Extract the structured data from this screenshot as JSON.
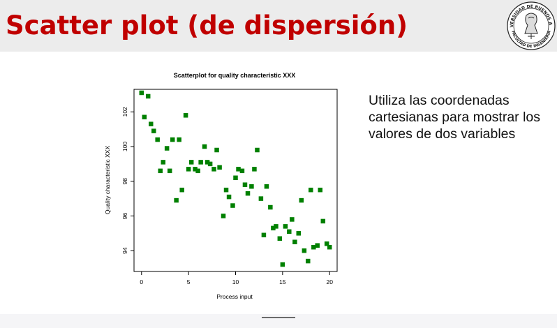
{
  "slide": {
    "title": "Scatter plot (de dispersión)",
    "text": "Utiliza las coordenadas cartesianas para mostrar los valores de dos variables",
    "logo": {
      "icon": "university-seal-icon",
      "ring_top": "UNIVERSIDAD DE BUENOS AIRES",
      "ring_bottom": "FACULTAD DE INGENIERIA"
    }
  },
  "colors": {
    "title": "#c00000",
    "header_bg": "#ececec",
    "marker": "#008000"
  },
  "chart_data": {
    "type": "scatter",
    "title": "Scatterplot for quality characteristic XXX",
    "xlabel": "Process input",
    "ylabel": "Quality characteristic XXX",
    "xlim": [
      -0.8,
      20.8
    ],
    "ylim": [
      92.8,
      103.3
    ],
    "xticks": [
      0,
      5,
      10,
      15,
      20
    ],
    "yticks": [
      94,
      96,
      98,
      100,
      102
    ],
    "marker": "square",
    "grid": false,
    "points": [
      [
        0.0,
        103.1
      ],
      [
        0.3,
        101.7
      ],
      [
        0.7,
        102.9
      ],
      [
        1.0,
        101.3
      ],
      [
        1.3,
        100.9
      ],
      [
        1.7,
        100.4
      ],
      [
        2.0,
        98.6
      ],
      [
        2.3,
        99.1
      ],
      [
        2.7,
        99.9
      ],
      [
        3.0,
        98.6
      ],
      [
        3.3,
        100.4
      ],
      [
        3.7,
        96.9
      ],
      [
        4.0,
        100.4
      ],
      [
        4.3,
        97.5
      ],
      [
        4.7,
        101.8
      ],
      [
        5.0,
        98.7
      ],
      [
        5.3,
        99.1
      ],
      [
        5.7,
        98.7
      ],
      [
        6.0,
        98.6
      ],
      [
        6.3,
        99.1
      ],
      [
        6.7,
        100.0
      ],
      [
        7.0,
        99.1
      ],
      [
        7.3,
        99.0
      ],
      [
        7.7,
        98.7
      ],
      [
        8.0,
        99.8
      ],
      [
        8.3,
        98.8
      ],
      [
        8.7,
        96.0
      ],
      [
        9.0,
        97.5
      ],
      [
        9.3,
        97.1
      ],
      [
        9.7,
        96.6
      ],
      [
        10.0,
        98.2
      ],
      [
        10.3,
        98.7
      ],
      [
        10.7,
        98.6
      ],
      [
        11.0,
        97.8
      ],
      [
        11.3,
        97.3
      ],
      [
        11.7,
        97.7
      ],
      [
        12.0,
        98.7
      ],
      [
        12.3,
        99.8
      ],
      [
        12.7,
        97.0
      ],
      [
        13.0,
        94.9
      ],
      [
        13.3,
        97.7
      ],
      [
        13.7,
        96.5
      ],
      [
        14.0,
        95.3
      ],
      [
        14.3,
        95.4
      ],
      [
        14.7,
        94.7
      ],
      [
        15.0,
        93.2
      ],
      [
        15.3,
        95.4
      ],
      [
        15.7,
        95.1
      ],
      [
        16.0,
        95.8
      ],
      [
        16.3,
        94.5
      ],
      [
        16.7,
        95.0
      ],
      [
        17.0,
        96.9
      ],
      [
        17.3,
        94.0
      ],
      [
        17.7,
        93.4
      ],
      [
        18.0,
        97.5
      ],
      [
        18.3,
        94.2
      ],
      [
        18.7,
        94.3
      ],
      [
        19.0,
        97.5
      ],
      [
        19.3,
        95.7
      ],
      [
        19.7,
        94.4
      ],
      [
        20.0,
        94.2
      ]
    ]
  }
}
